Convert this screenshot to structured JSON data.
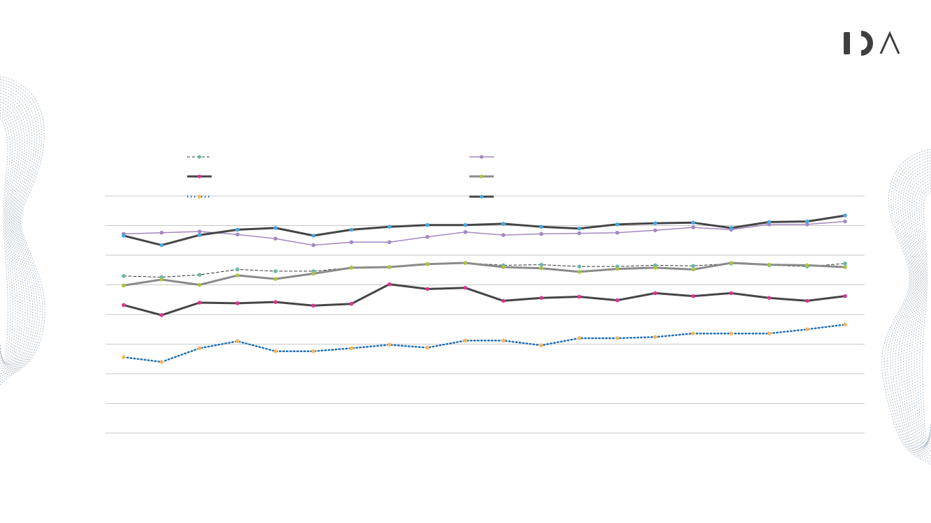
{
  "brand": {
    "logo_icon": "ida-logo-icon",
    "logo_color": "#3f3f3f"
  },
  "decor": {
    "contour_color": "#9fb0bf"
  },
  "chart_data": {
    "type": "line",
    "title": "",
    "xlabel": "",
    "ylabel": "",
    "ylim": [
      0,
      8
    ],
    "grid": true,
    "legend": "top",
    "x": [
      1,
      2,
      3,
      4,
      5,
      6,
      7,
      8,
      9,
      10,
      11,
      12,
      13,
      14,
      15,
      16,
      17,
      18,
      19,
      20
    ],
    "series": [
      {
        "color": "#333333",
        "marker_color": "#6bb7a6",
        "style": "dashed",
        "width": 1,
        "values": [
          5.3,
          5.26,
          5.34,
          5.52,
          5.46,
          5.46,
          5.58,
          5.6,
          5.7,
          5.74,
          5.66,
          5.68,
          5.62,
          5.62,
          5.66,
          5.64,
          5.72,
          5.66,
          5.62,
          5.72
        ]
      },
      {
        "color": "#a487c0",
        "marker_color": "#a487c0",
        "style": "solid",
        "width": 1.5,
        "values": [
          6.72,
          6.76,
          6.8,
          6.7,
          6.56,
          6.34,
          6.44,
          6.44,
          6.62,
          6.78,
          6.68,
          6.72,
          6.74,
          6.76,
          6.84,
          6.94,
          6.86,
          7.04,
          7.04,
          7.14
        ]
      },
      {
        "color": "#454545",
        "marker_color": "#d9368c",
        "style": "solid",
        "width": 3,
        "values": [
          4.32,
          3.98,
          4.4,
          4.38,
          4.42,
          4.3,
          4.36,
          5.02,
          4.86,
          4.9,
          4.46,
          4.56,
          4.6,
          4.48,
          4.72,
          4.62,
          4.72,
          4.56,
          4.46,
          4.62
        ]
      },
      {
        "color": "#8a8a8a",
        "marker_color": "#a9c24a",
        "style": "solid",
        "width": 3,
        "values": [
          4.98,
          5.18,
          5.0,
          5.32,
          5.2,
          5.38,
          5.58,
          5.6,
          5.7,
          5.74,
          5.6,
          5.56,
          5.44,
          5.54,
          5.58,
          5.52,
          5.74,
          5.68,
          5.66,
          5.6
        ]
      },
      {
        "color": "#1f6fb5",
        "marker_color": "#f0b860",
        "style": "dotted",
        "width": 2.5,
        "values": [
          2.56,
          2.4,
          2.86,
          3.1,
          2.76,
          2.76,
          2.86,
          2.98,
          2.88,
          3.12,
          3.12,
          2.96,
          3.2,
          3.2,
          3.24,
          3.36,
          3.36,
          3.36,
          3.5,
          3.66
        ]
      },
      {
        "color": "#454545",
        "marker_color": "#4aa7dd",
        "style": "solid",
        "width": 3,
        "values": [
          6.66,
          6.34,
          6.68,
          6.86,
          6.92,
          6.66,
          6.86,
          6.96,
          7.02,
          7.02,
          7.06,
          6.96,
          6.9,
          7.04,
          7.08,
          7.1,
          6.92,
          7.12,
          7.14,
          7.34
        ]
      }
    ]
  }
}
